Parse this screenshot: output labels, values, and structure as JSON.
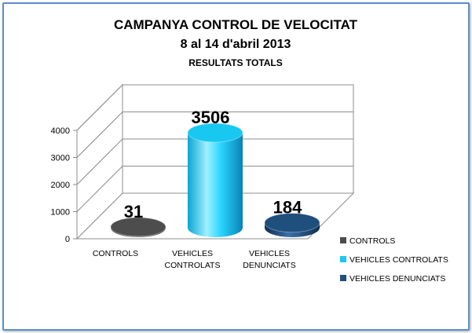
{
  "chart_data": {
    "type": "bar",
    "title_lines": [
      "CAMPANYA CONTROL DE VELOCITAT",
      "8 al 14 d'abril 2013",
      "RESULTATS TOTALS"
    ],
    "categories": [
      {
        "lines": [
          "CONTROLS"
        ]
      },
      {
        "lines": [
          "VEHICLES",
          "CONTROLATS"
        ]
      },
      {
        "lines": [
          "VEHICLES",
          "DENUNCIATS"
        ]
      }
    ],
    "values": [
      31,
      3506,
      184
    ],
    "data_labels": [
      "31",
      "3506",
      "184"
    ],
    "legend": [
      "CONTROLS",
      "VEHICLES CONTROLATS",
      "VEHICLES DENUNCIATS"
    ],
    "colors": [
      "#4d4d4d",
      "#19c8f0",
      "#1f4f7c"
    ],
    "yticks": [
      0,
      1000,
      2000,
      3000,
      4000
    ],
    "ylim": [
      0,
      4000
    ],
    "grid": true,
    "legend_position": "right",
    "style": "3d-cylinder"
  }
}
